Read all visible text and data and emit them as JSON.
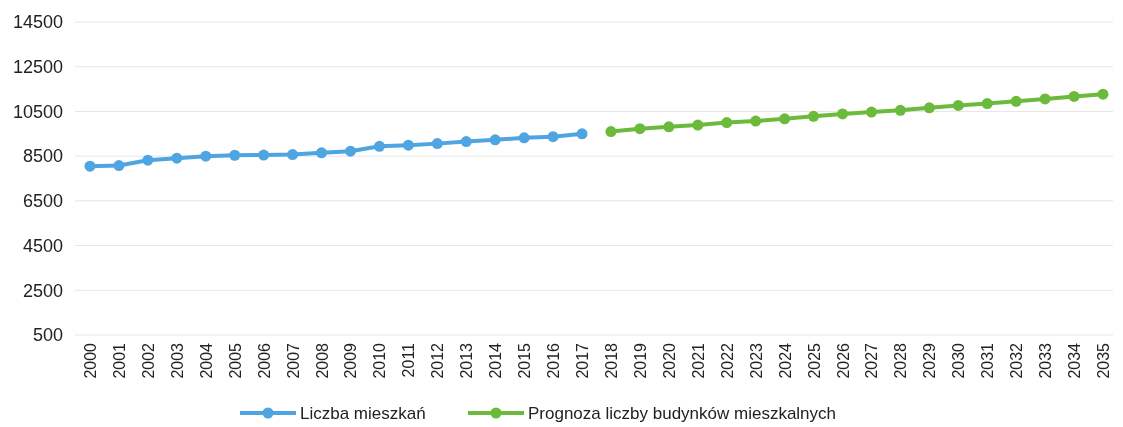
{
  "chart_data": {
    "type": "line",
    "categories": [
      "2000",
      "2001",
      "2002",
      "2003",
      "2004",
      "2005",
      "2006",
      "2007",
      "2008",
      "2009",
      "2010",
      "2011",
      "2012",
      "2013",
      "2014",
      "2015",
      "2016",
      "2017",
      "2018",
      "2019",
      "2020",
      "2021",
      "2022",
      "2023",
      "2024",
      "2025",
      "2026",
      "2027",
      "2028",
      "2029",
      "2030",
      "2031",
      "2032",
      "2033",
      "2034",
      "2035"
    ],
    "series": [
      {
        "name": "Liczba mieszkań",
        "color": "#4ea5e2",
        "values": [
          8050,
          8080,
          8320,
          8410,
          8500,
          8540,
          8550,
          8570,
          8650,
          8720,
          8940,
          8990,
          9060,
          9150,
          9230,
          9320,
          9370,
          9500,
          null,
          null,
          null,
          null,
          null,
          null,
          null,
          null,
          null,
          null,
          null,
          null,
          null,
          null,
          null,
          null,
          null,
          null
        ]
      },
      {
        "name": "Prognoza liczby budynków mieszkalnych",
        "color": "#6cba3c",
        "values": [
          null,
          null,
          null,
          null,
          null,
          null,
          null,
          null,
          null,
          null,
          null,
          null,
          null,
          null,
          null,
          null,
          null,
          null,
          9600,
          9730,
          9810,
          9890,
          10000,
          10070,
          10170,
          10280,
          10390,
          10470,
          10550,
          10660,
          10770,
          10850,
          10950,
          11060,
          11170,
          11270
        ]
      }
    ],
    "ylim": [
      500,
      14500
    ],
    "yticks": [
      500,
      2500,
      4500,
      6500,
      8500,
      10500,
      12500,
      14500
    ],
    "grid": "y",
    "legend": "bottom",
    "marker": "circle",
    "line_style": "solid"
  }
}
